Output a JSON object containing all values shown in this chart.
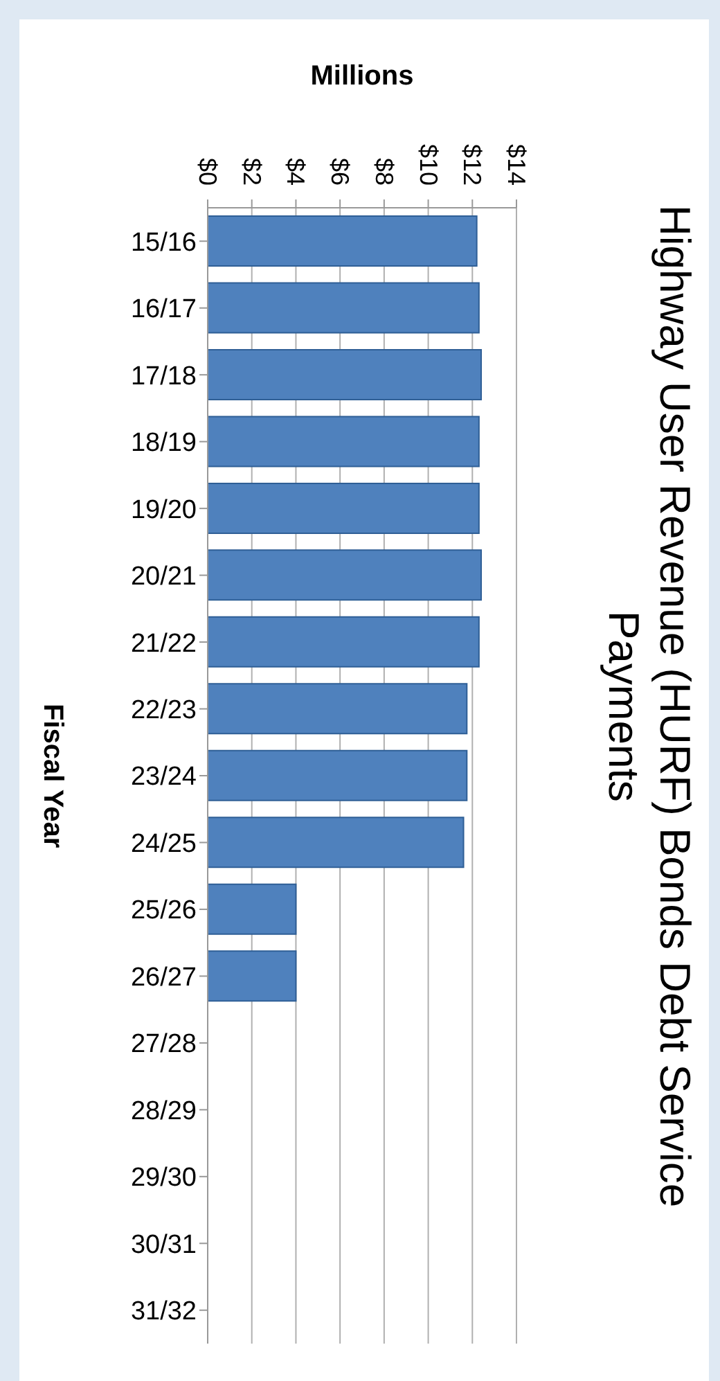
{
  "chart_data": {
    "type": "bar",
    "orientation": "horizontal",
    "title": "Highway User Revenue (HURF) Bonds Debt Service Payments",
    "xlabel": "Millions",
    "ylabel": "Fiscal Year",
    "categories": [
      "15/16",
      "16/17",
      "17/18",
      "18/19",
      "19/20",
      "20/21",
      "21/22",
      "22/23",
      "23/24",
      "24/25",
      "25/26",
      "26/27",
      "27/28",
      "28/29",
      "29/30",
      "30/31",
      "31/32"
    ],
    "values": [
      12.2,
      12.3,
      12.4,
      12.3,
      12.3,
      12.4,
      12.3,
      11.75,
      11.75,
      11.6,
      4.0,
      4.0,
      null,
      null,
      null,
      null,
      null
    ],
    "color": "#4f81bd",
    "xlim": [
      0,
      14
    ],
    "xticks": [
      {
        "value": 0,
        "label": "$0"
      },
      {
        "value": 2,
        "label": "$2"
      },
      {
        "value": 4,
        "label": "$4"
      },
      {
        "value": 6,
        "label": "$6"
      },
      {
        "value": 8,
        "label": "$8"
      },
      {
        "value": 10,
        "label": "$10"
      },
      {
        "value": 12,
        "label": "$12"
      },
      {
        "value": 14,
        "label": "$14"
      }
    ],
    "grid": "x"
  }
}
